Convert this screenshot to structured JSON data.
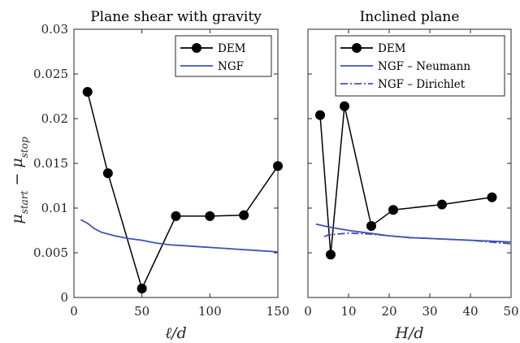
{
  "chart_data": [
    {
      "type": "line",
      "title": "Plane shear with gravity",
      "xlabel": "ℓ/d",
      "ylabel": "μstart − μstop",
      "xlim": [
        0,
        150
      ],
      "ylim": [
        0,
        0.03
      ],
      "xticks": [
        "0",
        "50",
        "100",
        "150"
      ],
      "yticks": [
        "0",
        "0.005",
        "0.01",
        "0.015",
        "0.02",
        "0.025",
        "0.03"
      ],
      "legend": "top-right",
      "grid": false,
      "series": [
        {
          "name": "DEM",
          "style": "solid-markers",
          "color": "#000000",
          "x": [
            10,
            25,
            50,
            75,
            100,
            125,
            150
          ],
          "y": [
            0.023,
            0.0139,
            0.001,
            0.0091,
            0.0091,
            0.0092,
            0.0147
          ]
        },
        {
          "name": "NGF",
          "style": "solid",
          "color": "#3f51b5",
          "x": [
            5,
            10,
            15,
            20,
            30,
            40,
            50,
            60,
            70,
            80,
            90,
            100,
            110,
            120,
            130,
            140,
            150
          ],
          "y": [
            0.0087,
            0.0083,
            0.0077,
            0.0073,
            0.0069,
            0.0066,
            0.0064,
            0.0061,
            0.0059,
            0.0058,
            0.0057,
            0.0056,
            0.0055,
            0.0054,
            0.0053,
            0.0052,
            0.0051
          ]
        }
      ]
    },
    {
      "type": "line",
      "title": "Inclined plane",
      "xlabel": "H/d",
      "ylabel": "",
      "xlim": [
        0,
        50
      ],
      "ylim": [
        0,
        0.03
      ],
      "xticks": [
        "0",
        "10",
        "20",
        "30",
        "40",
        "50"
      ],
      "yticks": [],
      "legend": "top-right",
      "grid": false,
      "series": [
        {
          "name": "DEM",
          "style": "solid-markers",
          "color": "#000000",
          "x": [
            3,
            5.6,
            9,
            15.6,
            21,
            33,
            45.3
          ],
          "y": [
            0.0204,
            0.0048,
            0.0214,
            0.008,
            0.0098,
            0.0104,
            0.0112
          ]
        },
        {
          "name": "NGF – Neumann",
          "style": "solid",
          "color": "#3f51b5",
          "x": [
            2,
            5,
            10,
            15,
            20,
            25,
            30,
            35,
            40,
            45,
            50
          ],
          "y": [
            0.0082,
            0.0079,
            0.0075,
            0.0072,
            0.0069,
            0.0067,
            0.0066,
            0.0065,
            0.0064,
            0.0063,
            0.0062
          ]
        },
        {
          "name": "NGF – Dirichlet",
          "style": "dashdot",
          "color": "#3f51b5",
          "x": [
            4,
            5,
            10,
            15,
            20,
            25,
            30,
            35,
            40,
            45,
            50
          ],
          "y": [
            0.0068,
            0.007,
            0.0072,
            0.0071,
            0.0069,
            0.0067,
            0.0066,
            0.0065,
            0.0064,
            0.0062,
            0.006
          ]
        }
      ]
    }
  ]
}
